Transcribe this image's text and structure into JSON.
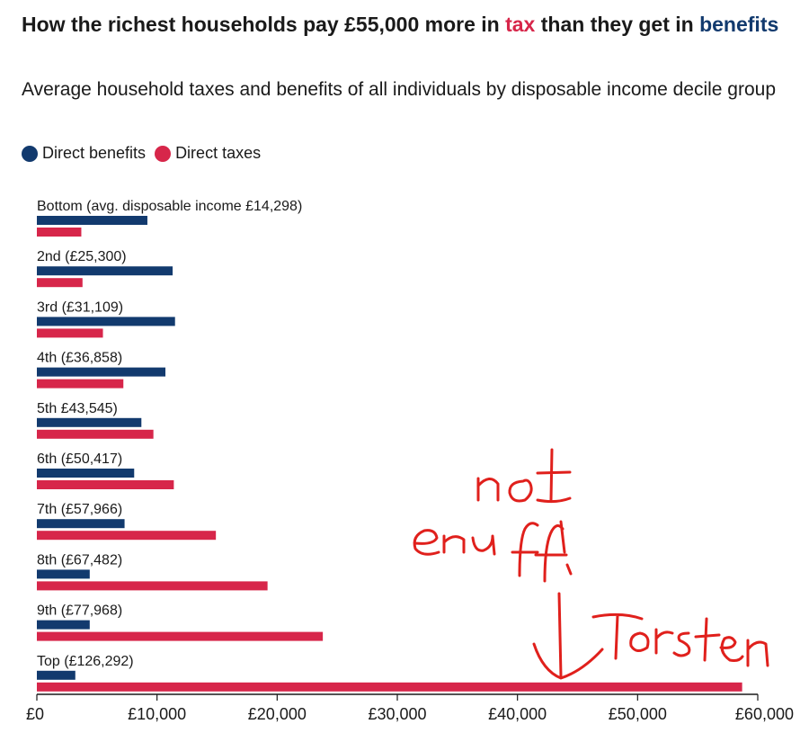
{
  "title": {
    "part1": "How the richest households pay £55,000 more in ",
    "tax_word": "tax",
    "part2": " than they get in ",
    "benefits_word": "benefits"
  },
  "subtitle": "Average household taxes and benefits of all individuals by disposable income decile group",
  "legend": [
    {
      "label": "Direct benefits",
      "color": "#123a6e"
    },
    {
      "label": "Direct taxes",
      "color": "#d7264a"
    }
  ],
  "annotation": {
    "line1": "not",
    "line2": "enuff!",
    "signature": "Torsten",
    "color": "#e0201c"
  },
  "chart_data": {
    "type": "bar",
    "orientation": "horizontal",
    "categories": [
      "Bottom (avg. disposable income £14,298)",
      "2nd (£25,300)",
      "3rd (£31,109)",
      "4th (£36,858)",
      "5th £43,545)",
      "6th (£50,417)",
      "7th (£57,966)",
      "8th (£67,482)",
      "9th (£77,968)",
      "Top (£126,292)"
    ],
    "series": [
      {
        "name": "Direct benefits",
        "color": "#123a6e",
        "values": [
          9200,
          11300,
          11500,
          10700,
          8700,
          8100,
          7300,
          4400,
          4400,
          3200
        ]
      },
      {
        "name": "Direct taxes",
        "color": "#d7264a",
        "values": [
          3700,
          3800,
          5500,
          7200,
          9700,
          11400,
          14900,
          19200,
          23800,
          58700
        ]
      }
    ],
    "xlim": [
      0,
      60000
    ],
    "xticks": [
      0,
      10000,
      20000,
      30000,
      40000,
      50000,
      60000
    ],
    "xtick_labels": [
      "£0",
      "£10,000",
      "£20,000",
      "£30,000",
      "£40,000",
      "£50,000",
      "£60,000"
    ],
    "grid": false
  }
}
